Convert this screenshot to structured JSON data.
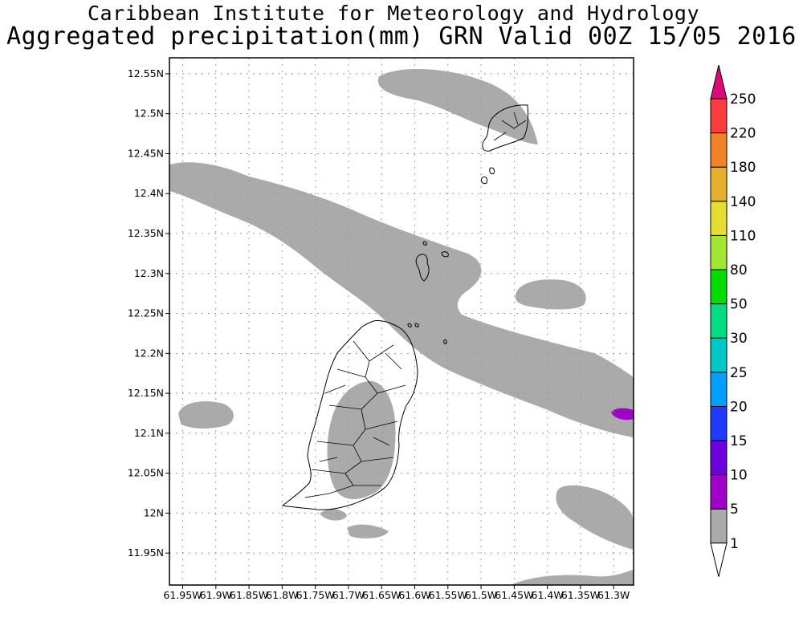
{
  "header": {
    "title_line1": "Caribbean Institute for Meteorology and Hydrology",
    "title_line2": "Aggregated precipitation(mm) GRN Valid 00Z 15/05 2016"
  },
  "map": {
    "lon_range": [
      -61.97,
      -61.27
    ],
    "lat_range": [
      11.91,
      12.57
    ],
    "grid": true,
    "lat_ticks": [
      {
        "value": 12.55,
        "label": "12.55N"
      },
      {
        "value": 12.5,
        "label": "12.5N"
      },
      {
        "value": 12.45,
        "label": "12.45N"
      },
      {
        "value": 12.4,
        "label": "12.4N"
      },
      {
        "value": 12.35,
        "label": "12.35N"
      },
      {
        "value": 12.3,
        "label": "12.3N"
      },
      {
        "value": 12.25,
        "label": "12.25N"
      },
      {
        "value": 12.2,
        "label": "12.2N"
      },
      {
        "value": 12.15,
        "label": "12.15N"
      },
      {
        "value": 12.1,
        "label": "12.1N"
      },
      {
        "value": 12.05,
        "label": "12.05N"
      },
      {
        "value": 12.0,
        "label": "12N"
      },
      {
        "value": 11.95,
        "label": "11.95N"
      }
    ],
    "lon_ticks": [
      {
        "value": -61.95,
        "label": "61.95W"
      },
      {
        "value": -61.9,
        "label": "61.9W"
      },
      {
        "value": -61.85,
        "label": "61.85W"
      },
      {
        "value": -61.8,
        "label": "61.8W"
      },
      {
        "value": -61.75,
        "label": "61.75W"
      },
      {
        "value": -61.7,
        "label": "61.7W"
      },
      {
        "value": -61.65,
        "label": "61.65W"
      },
      {
        "value": -61.6,
        "label": "61.6W"
      },
      {
        "value": -61.55,
        "label": "61.55W"
      },
      {
        "value": -61.5,
        "label": "61.5W"
      },
      {
        "value": -61.45,
        "label": "61.45W"
      },
      {
        "value": -61.4,
        "label": "61.4W"
      },
      {
        "value": -61.35,
        "label": "61.35W"
      },
      {
        "value": -61.3,
        "label": "61.3W"
      }
    ]
  },
  "colorbar": {
    "labels": [
      "1",
      "5",
      "10",
      "15",
      "20",
      "25",
      "30",
      "50",
      "80",
      "110",
      "140",
      "180",
      "220",
      "250"
    ],
    "colors": [
      "#aaaaaa",
      "#a000c8",
      "#6e00dc",
      "#1e3cff",
      "#00a0ff",
      "#00c8c8",
      "#00dc82",
      "#00dc00",
      "#a0e632",
      "#e6dc32",
      "#e6af2d",
      "#f08228",
      "#fa3c3c",
      "#dc0a78"
    ],
    "below_color": "#ffffff"
  },
  "colors": {
    "rain_1_5": "#aaaaaa",
    "rain_5_10": "#a000c8"
  }
}
